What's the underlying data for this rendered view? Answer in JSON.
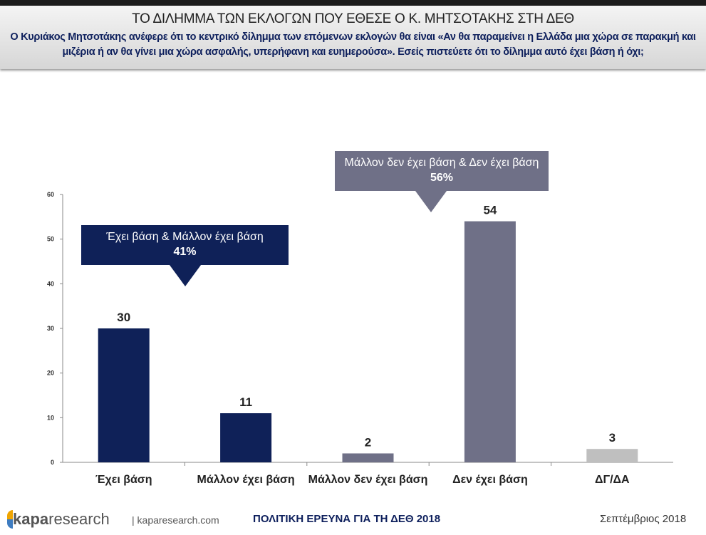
{
  "header": {
    "title": "ΤΟ ΔΙΛΗΜΜΑ ΤΩΝ ΕΚΛΟΓΩΝ ΠΟΥ ΕΘΕΣΕ Ο Κ. ΜΗΤΣΟΤΑΚΗΣ ΣΤΗ ΔΕΘ",
    "subtitle": "Ο Κυριάκος Μητσοτάκης ανέφερε ότι το κεντρικό δίλημμα των επόμενων εκλογών θα είναι «Αν θα παραμείνει η Ελλάδα μια χώρα σε παρακμή και μιζέρια ή αν θα γίνει μια χώρα ασφαλής, υπερήφανη και ευημερούσα». Εσείς πιστεύετε ότι το δίλημμα αυτό έχει βάση ή όχι;"
  },
  "chart_data": {
    "type": "bar",
    "categories": [
      "Έχει βάση",
      "Μάλλον έχει βάση",
      "Μάλλον δεν έχει βάση",
      "Δεν έχει βάση",
      "ΔΓ/ΔΑ"
    ],
    "values": [
      30,
      11,
      2,
      54,
      3
    ],
    "colors": [
      "#0f2158",
      "#0f2158",
      "#6f7087",
      "#6f7087",
      "#bfbfbf"
    ],
    "ylim": [
      0,
      60
    ],
    "yticks": [
      0,
      10,
      20,
      30,
      40,
      50,
      60
    ],
    "annotations": [
      {
        "label": "Έχει βάση & Μάλλον έχει βάση",
        "value": "41%",
        "color": "#0f2158"
      },
      {
        "label": "Μάλλον δεν έχει βάση & Δεν έχει βάση",
        "value": "56%",
        "color": "#6f7087"
      }
    ]
  },
  "footer": {
    "logo": "kapa research",
    "site": "kaparesearch.com",
    "center": "ΠΟΛΙΤΙΚΗ ΕΡΕΥΝΑ ΓΙΑ ΤΗ ΔΕΘ 2018",
    "date": "Σεπτέμβριος 2018"
  }
}
